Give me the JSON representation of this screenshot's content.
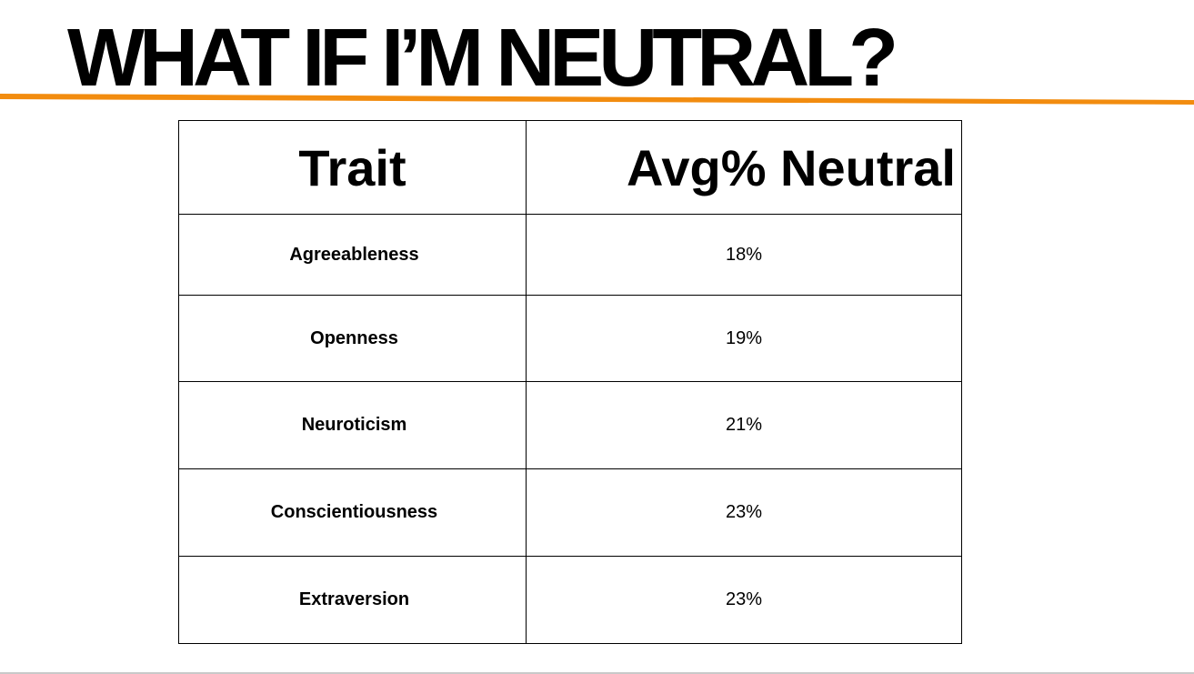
{
  "slide": {
    "title": "WHAT IF I’M NEUTRAL?",
    "accent_color": "#f28c0f"
  },
  "table": {
    "headers": {
      "trait": "Trait",
      "avg_neutral": "Avg% Neutral"
    },
    "rows": [
      {
        "trait": "Agreeableness",
        "value": "18%"
      },
      {
        "trait": "Openness",
        "value": "19%"
      },
      {
        "trait": "Neuroticism",
        "value": "21%"
      },
      {
        "trait": "Conscientiousness",
        "value": "23%"
      },
      {
        "trait": "Extraversion",
        "value": "23%"
      }
    ]
  }
}
